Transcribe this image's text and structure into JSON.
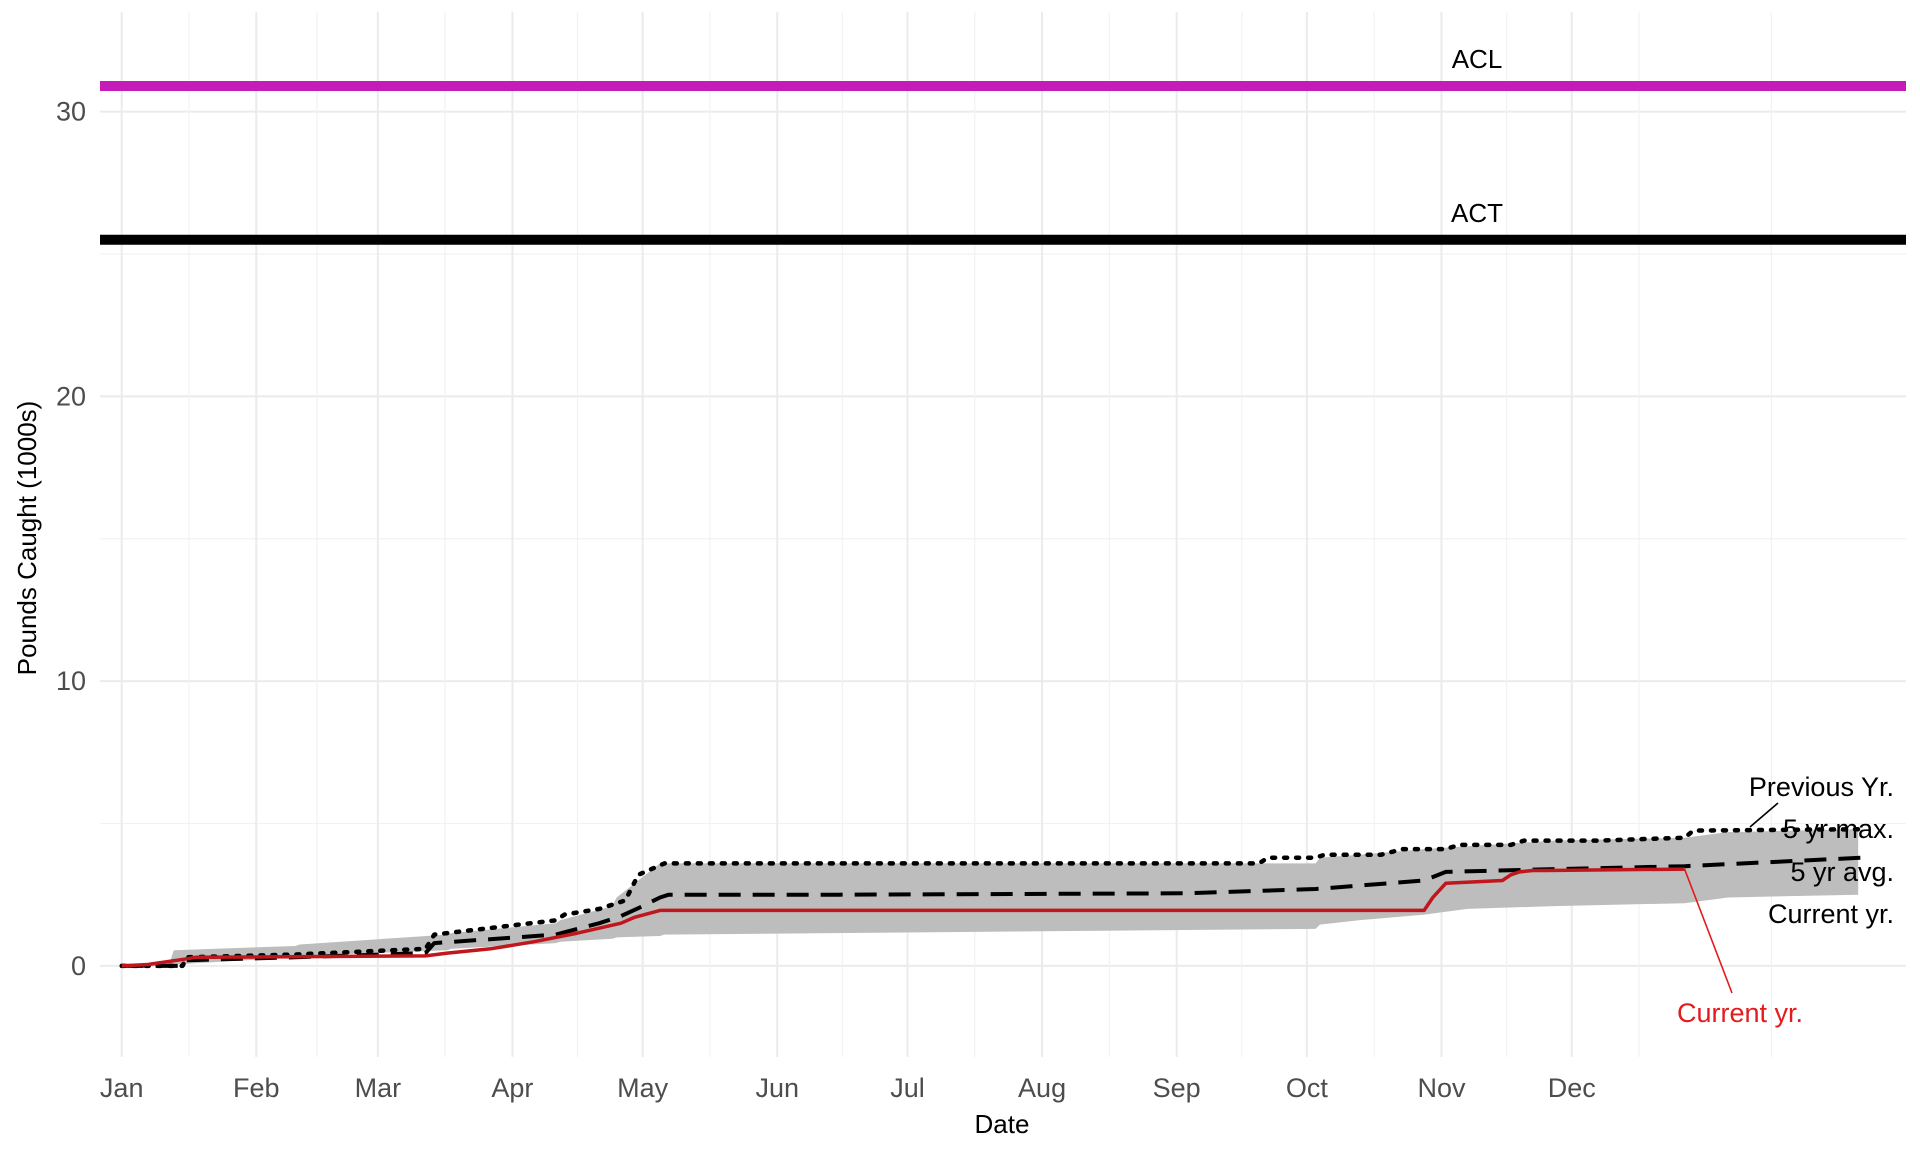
{
  "chart_data": {
    "type": "line",
    "title": "",
    "xlabel": "Date",
    "ylabel": "Pounds Caught (1000s)",
    "x_ticks": [
      "Jan",
      "Feb",
      "Mar",
      "Apr",
      "May",
      "Jun",
      "Jul",
      "Aug",
      "Sep",
      "Oct",
      "Nov",
      "Dec"
    ],
    "y_ticks": [
      0,
      10,
      20,
      30
    ],
    "ylim": [
      -3.2,
      33.5
    ],
    "xlim_day": [
      -5,
      411
    ],
    "grid": true,
    "reference_lines": [
      {
        "label": "ACL",
        "value": 30.9,
        "color": "#c51bb8"
      },
      {
        "label": "ACT",
        "value": 25.5,
        "color": "#000000"
      }
    ],
    "range_band": {
      "name": "Previous Yr.",
      "color": "#bdbdbd",
      "day": [
        0,
        11,
        12,
        40,
        41,
        75,
        76,
        100,
        101,
        113,
        114,
        124,
        125,
        275,
        276,
        285,
        300,
        310,
        330,
        360,
        370,
        400
      ],
      "min": [
        0,
        0,
        0.05,
        0.3,
        0.35,
        0.55,
        0.6,
        0.8,
        0.85,
        0.95,
        1.0,
        1.05,
        1.1,
        1.3,
        1.45,
        1.6,
        1.8,
        2.0,
        2.1,
        2.2,
        2.4,
        2.5
      ],
      "max": [
        0,
        0.1,
        0.55,
        0.7,
        0.75,
        1.1,
        1.15,
        1.5,
        1.6,
        2.1,
        2.4,
        3.6,
        3.6,
        3.6,
        3.8,
        3.9,
        4.1,
        4.2,
        4.4,
        4.5,
        4.7,
        4.8
      ]
    },
    "series": [
      {
        "name": "5 yr max.",
        "style": "dotted",
        "color": "#000000",
        "day": [
          0,
          14,
          15,
          40,
          70,
          72,
          100,
          102,
          110,
          112,
          116,
          119,
          125,
          160,
          262,
          264,
          275,
          277,
          290,
          295,
          305,
          308,
          320,
          323,
          340,
          360,
          362,
          401
        ],
        "values": [
          0,
          0,
          0.3,
          0.4,
          0.6,
          1.1,
          1.6,
          1.8,
          2.0,
          2.1,
          2.3,
          3.2,
          3.6,
          3.6,
          3.6,
          3.8,
          3.8,
          3.9,
          3.9,
          4.1,
          4.1,
          4.25,
          4.25,
          4.4,
          4.4,
          4.5,
          4.75,
          4.8
        ]
      },
      {
        "name": "5 yr avg.",
        "style": "dashed",
        "color": "#000000",
        "day": [
          0,
          14,
          15,
          40,
          70,
          72,
          100,
          105,
          110,
          115,
          120,
          124,
          126,
          165,
          245,
          275,
          300,
          305,
          330,
          360,
          401
        ],
        "values": [
          0,
          0,
          0.2,
          0.3,
          0.45,
          0.8,
          1.1,
          1.3,
          1.5,
          1.75,
          2.1,
          2.4,
          2.5,
          2.5,
          2.55,
          2.7,
          3.0,
          3.3,
          3.4,
          3.5,
          3.8
        ]
      },
      {
        "name": "Current yr.",
        "style": "solid",
        "color": "#c0161c",
        "day": [
          0,
          6,
          15,
          17,
          70,
          75,
          85,
          95,
          105,
          115,
          118,
          124,
          126,
          300,
          302,
          305,
          318,
          320,
          322,
          325,
          328,
          360
        ],
        "values": [
          0,
          0.05,
          0.25,
          0.3,
          0.35,
          0.45,
          0.6,
          0.85,
          1.15,
          1.5,
          1.7,
          1.95,
          1.95,
          1.95,
          2.4,
          2.9,
          3.0,
          3.2,
          3.3,
          3.35,
          3.35,
          3.4
        ]
      }
    ]
  }
}
